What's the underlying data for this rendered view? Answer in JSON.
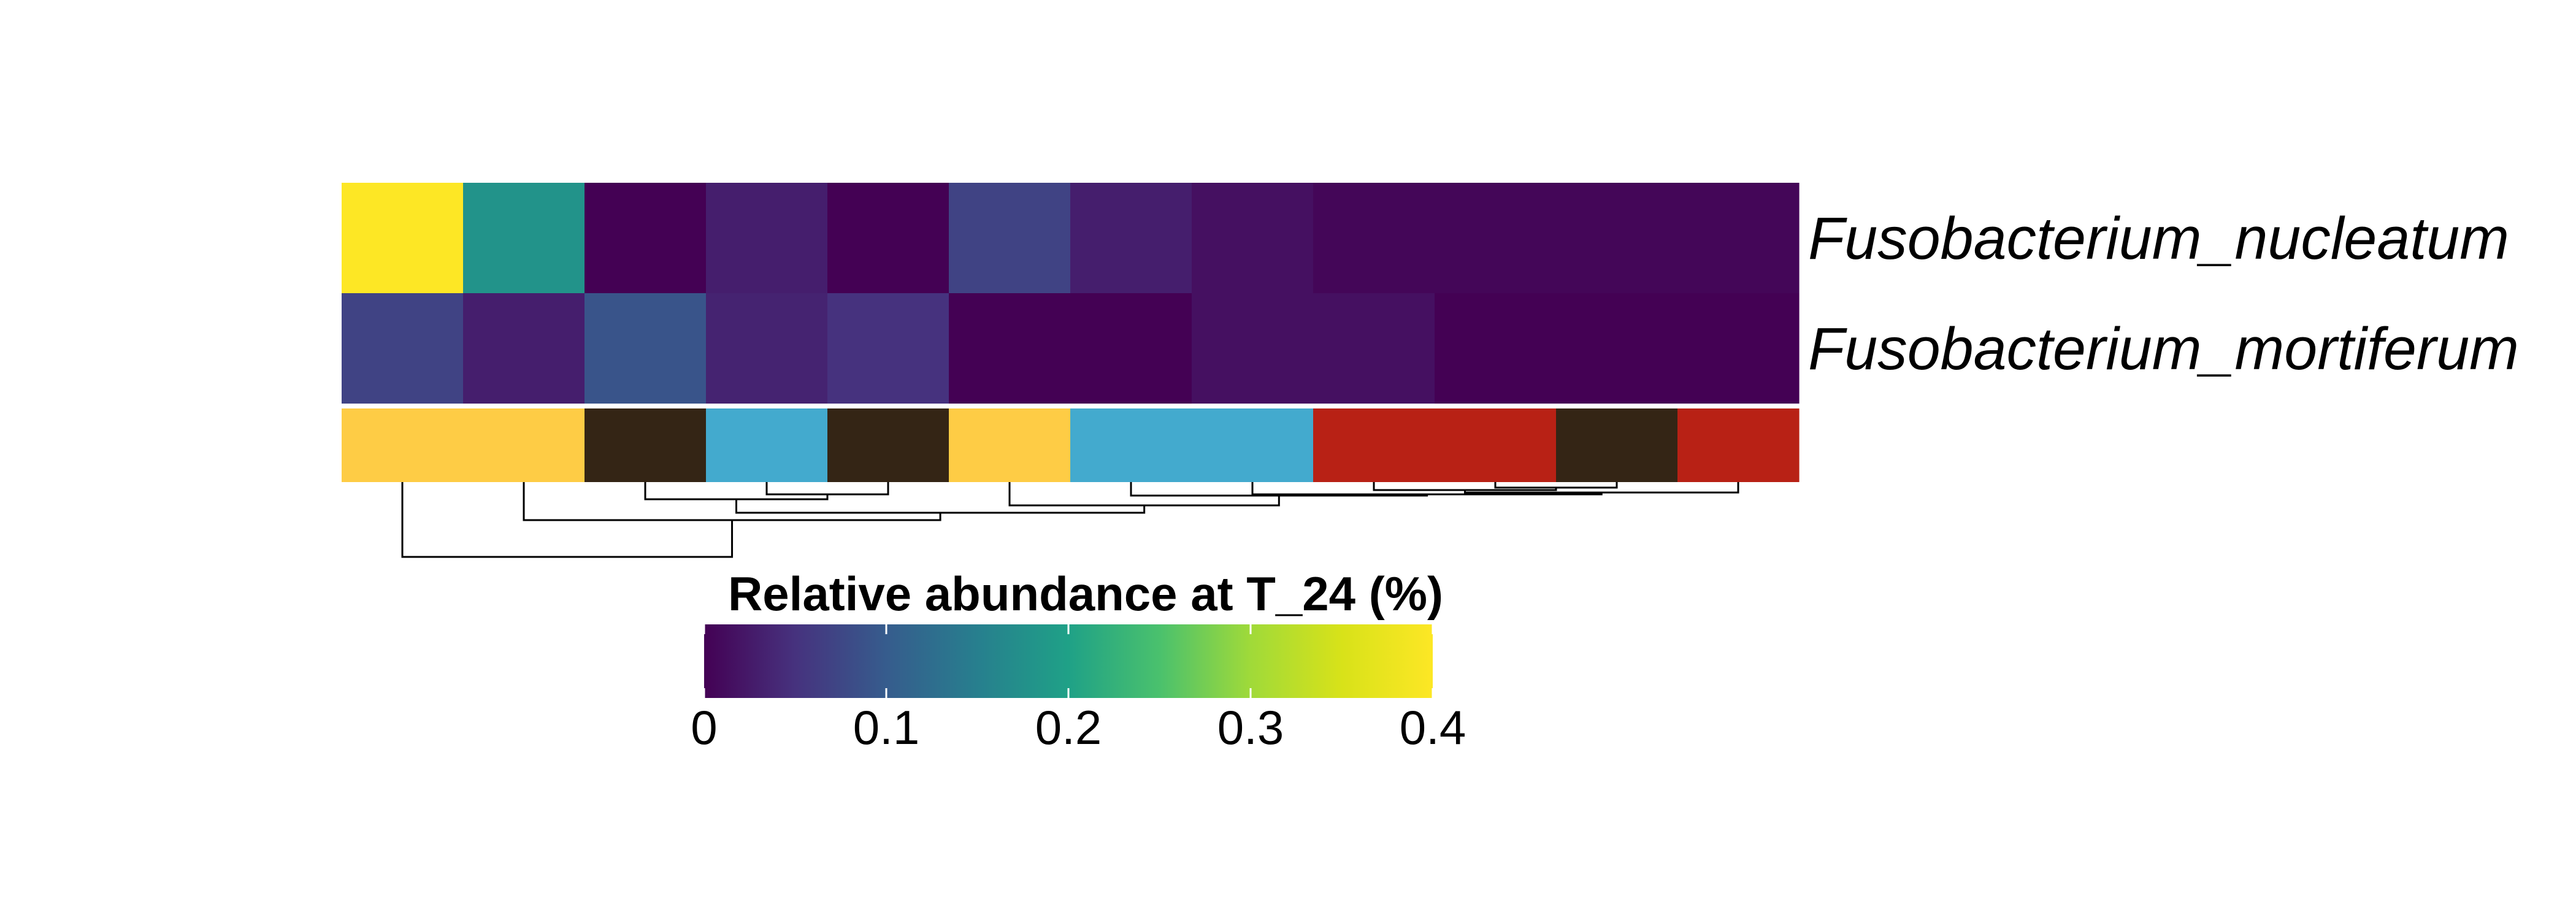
{
  "chart_data": {
    "type": "heatmap",
    "rows": [
      "Fusobacterium_nucleatum",
      "Fusobacterium_mortiferum"
    ],
    "values": [
      [
        0.4,
        0.18,
        0.0,
        0.03,
        0.0,
        0.07,
        0.03,
        0.015,
        0.005,
        0.005,
        0.005,
        0.005
      ],
      [
        0.07,
        0.03,
        0.09,
        0.035,
        0.05,
        0.0,
        0.0,
        0.015,
        0.015,
        0.0,
        0.0,
        0.0
      ]
    ],
    "column_groups": [
      "yellow",
      "yellow",
      "dark",
      "blue",
      "dark",
      "yellow",
      "blue",
      "blue",
      "red",
      "red",
      "dark",
      "red"
    ],
    "group_colors": {
      "yellow": "#FECC45",
      "dark": "#342515",
      "blue": "#43AACE",
      "red": "#B82115"
    },
    "colorscale": "viridis",
    "color_range": [
      0,
      0.4
    ],
    "legend": {
      "title": "Relative abundance at T_24 (%)",
      "ticks": [
        0,
        0.1,
        0.2,
        0.3,
        0.4
      ],
      "tick_labels": [
        "0",
        "0.1",
        "0.2",
        "0.3",
        "0.4"
      ],
      "placement": "bottom"
    },
    "dendrogram": "columns-below"
  }
}
